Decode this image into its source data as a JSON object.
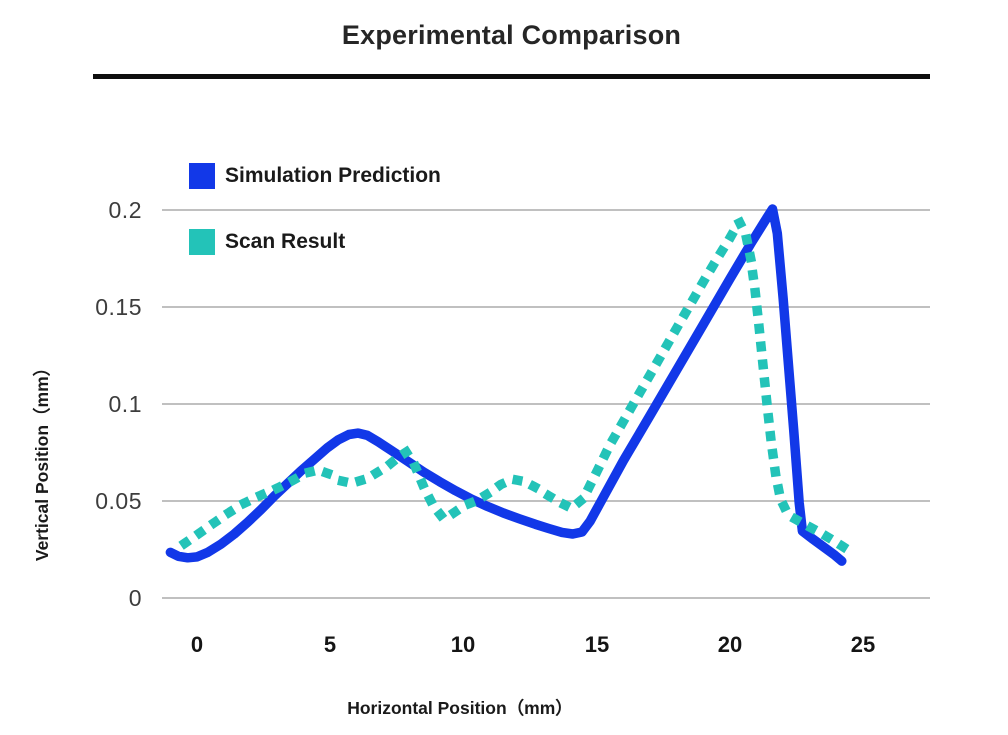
{
  "header": {
    "title": "Experimental Comparison"
  },
  "colors": {
    "simulation_blue": "#1238e8",
    "scan_teal": "#23c3b8",
    "gridline": "#ababab",
    "title_text": "#262626",
    "rule_black": "#0e0e0e"
  },
  "chart_data": {
    "type": "line",
    "title": "Experimental Comparison",
    "xlabel": "Horizontal Position（mm）",
    "ylabel": "Vertical Position（mm）",
    "xlim": [
      -1.3,
      27.5
    ],
    "ylim": [
      0,
      0.205
    ],
    "xticks": [
      0,
      5,
      10,
      15,
      20,
      25
    ],
    "xtick_labels": [
      "0",
      "5",
      "10",
      "15",
      "20",
      "25"
    ],
    "yticks": [
      0,
      0.05,
      0.1,
      0.15,
      0.2
    ],
    "ytick_labels": [
      "0",
      "0.05",
      "0.1",
      "0.15",
      "0.2"
    ],
    "grid": "horizontal-only",
    "legend_position": "upper-left-inside",
    "series": [
      {
        "name": "Simulation Prediction",
        "color": "#1238e8",
        "line_style": "solid",
        "line_width": 9.5,
        "points": [
          [
            -1.0,
            0.0235
          ],
          [
            -0.7,
            0.0215
          ],
          [
            -0.35,
            0.0207
          ],
          [
            0,
            0.0212
          ],
          [
            0.4,
            0.0235
          ],
          [
            0.9,
            0.0278
          ],
          [
            1.4,
            0.033
          ],
          [
            1.9,
            0.039
          ],
          [
            2.4,
            0.0455
          ],
          [
            2.9,
            0.0525
          ],
          [
            3.4,
            0.059
          ],
          [
            3.9,
            0.0655
          ],
          [
            4.4,
            0.0715
          ],
          [
            4.9,
            0.0775
          ],
          [
            5.3,
            0.0815
          ],
          [
            5.7,
            0.0843
          ],
          [
            6.05,
            0.085
          ],
          [
            6.4,
            0.0838
          ],
          [
            6.8,
            0.0805
          ],
          [
            7.3,
            0.076
          ],
          [
            7.9,
            0.0705
          ],
          [
            8.5,
            0.065
          ],
          [
            9.1,
            0.06
          ],
          [
            9.7,
            0.0553
          ],
          [
            10.3,
            0.051
          ],
          [
            10.9,
            0.0472
          ],
          [
            11.5,
            0.0438
          ],
          [
            12.1,
            0.0408
          ],
          [
            12.7,
            0.038
          ],
          [
            13.2,
            0.0358
          ],
          [
            13.7,
            0.0338
          ],
          [
            14.1,
            0.033
          ],
          [
            14.45,
            0.034
          ],
          [
            14.75,
            0.0395
          ],
          [
            15.1,
            0.0482
          ],
          [
            16.0,
            0.0707
          ],
          [
            17.0,
            0.094
          ],
          [
            18.0,
            0.1175
          ],
          [
            19.0,
            0.141
          ],
          [
            20.0,
            0.1645
          ],
          [
            20.8,
            0.183
          ],
          [
            21.3,
            0.194
          ],
          [
            21.6,
            0.2005
          ],
          [
            21.78,
            0.188
          ],
          [
            22.0,
            0.154
          ],
          [
            22.2,
            0.12
          ],
          [
            22.4,
            0.086
          ],
          [
            22.6,
            0.049
          ],
          [
            22.72,
            0.0345
          ],
          [
            23.1,
            0.0305
          ],
          [
            23.5,
            0.0265
          ],
          [
            23.9,
            0.0225
          ],
          [
            24.2,
            0.019
          ]
        ]
      },
      {
        "name": "Scan Result",
        "color": "#23c3b8",
        "line_style": "dotted",
        "line_width": 9.5,
        "points": [
          [
            -0.45,
            0.0283
          ],
          [
            0.1,
            0.0335
          ],
          [
            0.65,
            0.0388
          ],
          [
            1.2,
            0.044
          ],
          [
            1.75,
            0.0487
          ],
          [
            2.35,
            0.0527
          ],
          [
            2.95,
            0.0562
          ],
          [
            3.55,
            0.0603
          ],
          [
            4.1,
            0.0645
          ],
          [
            4.55,
            0.066
          ],
          [
            4.95,
            0.064
          ],
          [
            5.35,
            0.0605
          ],
          [
            5.8,
            0.0592
          ],
          [
            6.25,
            0.061
          ],
          [
            6.7,
            0.0642
          ],
          [
            7.15,
            0.068
          ],
          [
            7.6,
            0.073
          ],
          [
            7.85,
            0.0752
          ],
          [
            8.15,
            0.069
          ],
          [
            8.5,
            0.0575
          ],
          [
            8.85,
            0.048
          ],
          [
            9.25,
            0.0408
          ],
          [
            9.65,
            0.044
          ],
          [
            10.05,
            0.0478
          ],
          [
            10.5,
            0.0502
          ],
          [
            10.95,
            0.054
          ],
          [
            11.4,
            0.0585
          ],
          [
            11.85,
            0.0612
          ],
          [
            12.3,
            0.06
          ],
          [
            12.75,
            0.0567
          ],
          [
            13.2,
            0.0527
          ],
          [
            13.65,
            0.049
          ],
          [
            14.05,
            0.0463
          ],
          [
            14.5,
            0.0513
          ],
          [
            15.0,
            0.065
          ],
          [
            15.5,
            0.079
          ],
          [
            16.0,
            0.091
          ],
          [
            16.5,
            0.103
          ],
          [
            17.0,
            0.115
          ],
          [
            17.5,
            0.127
          ],
          [
            18.0,
            0.139
          ],
          [
            18.5,
            0.151
          ],
          [
            19.0,
            0.163
          ],
          [
            19.5,
            0.1745
          ],
          [
            20.0,
            0.1855
          ],
          [
            20.35,
            0.194
          ],
          [
            20.6,
            0.187
          ],
          [
            20.78,
            0.175
          ],
          [
            20.95,
            0.158
          ],
          [
            21.1,
            0.139
          ],
          [
            21.25,
            0.119
          ],
          [
            21.4,
            0.099
          ],
          [
            21.55,
            0.0805
          ],
          [
            21.72,
            0.0635
          ],
          [
            21.9,
            0.051
          ],
          [
            22.1,
            0.0452
          ],
          [
            22.35,
            0.0415
          ],
          [
            22.7,
            0.0388
          ],
          [
            23.1,
            0.0358
          ],
          [
            23.5,
            0.0328
          ],
          [
            23.9,
            0.0295
          ],
          [
            24.3,
            0.026
          ],
          [
            24.65,
            0.0218
          ]
        ]
      }
    ]
  }
}
